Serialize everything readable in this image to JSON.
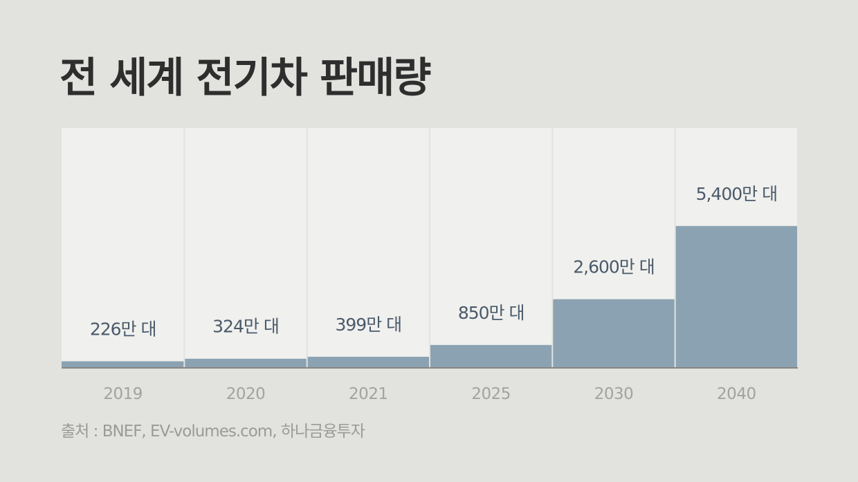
{
  "title": "전 세계 전기차 판매량",
  "source": "출처 : BNEF, EV-volumes.com, 하나금융투자",
  "colors": {
    "bar": "#8ba2b2",
    "column_bg": "#f0f0ee",
    "page_bg": "#e2e2de",
    "baseline": "#8a8480"
  },
  "chart_data": {
    "type": "bar",
    "categories": [
      "2019",
      "2020",
      "2021",
      "2025",
      "2030",
      "2040"
    ],
    "values": [
      226,
      324,
      399,
      850,
      2600,
      5400
    ],
    "data_labels": [
      "226만 대",
      "324만 대",
      "399만 대",
      "850만 대",
      "2,600만 대",
      "5,400만 대"
    ],
    "title": "전 세계 전기차 판매량",
    "xlabel": "",
    "ylabel": "",
    "ylim": [
      0,
      9150
    ],
    "grid": false,
    "legend": "none"
  }
}
